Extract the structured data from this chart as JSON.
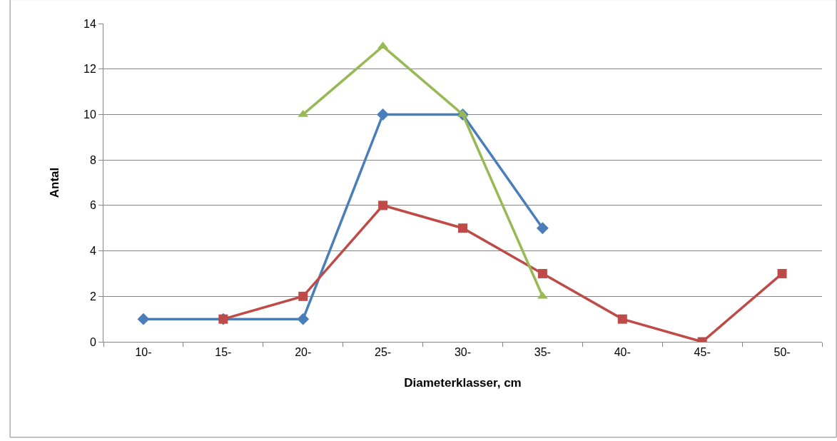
{
  "chart_data": {
    "type": "line",
    "xlabel": "Diameterklasser, cm",
    "ylabel": "Antal",
    "categories": [
      "10-",
      "15-",
      "20-",
      "25-",
      "30-",
      "35-",
      "40-",
      "45-",
      "50-"
    ],
    "series": [
      {
        "color": "#4a7ebb",
        "marker": "diamond",
        "values": [
          1,
          1,
          1,
          10,
          10,
          5,
          null,
          null,
          null
        ]
      },
      {
        "color": "#be4b48",
        "marker": "square",
        "values": [
          null,
          1,
          2,
          6,
          5,
          3,
          1,
          0,
          3
        ]
      },
      {
        "color": "#98b954",
        "marker": "triangle",
        "values": [
          null,
          null,
          10,
          13,
          10,
          2,
          null,
          null,
          null
        ]
      }
    ],
    "ylim": [
      0,
      14
    ],
    "yticks": [
      0,
      2,
      4,
      6,
      8,
      10,
      12,
      14
    ],
    "grid": "y",
    "line_style": "solid"
  }
}
